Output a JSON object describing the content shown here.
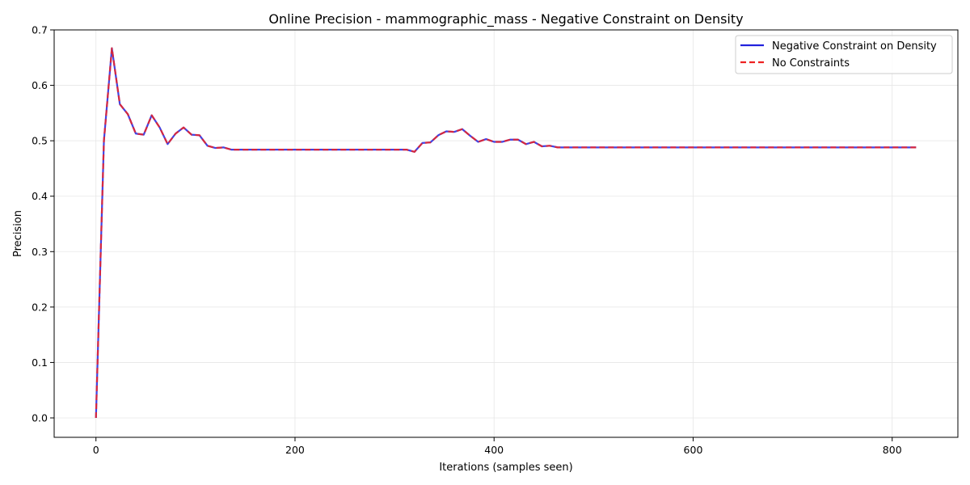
{
  "chart_data": {
    "type": "line",
    "title": "Online Precision - mammographic_mass - Negative Constraint on Density",
    "xlabel": "Iterations (samples seen)",
    "ylabel": "Precision",
    "xlim": [
      -42,
      866
    ],
    "ylim": [
      -0.035,
      0.7
    ],
    "xticks": [
      0,
      200,
      400,
      600,
      800
    ],
    "yticks": [
      0.0,
      0.1,
      0.2,
      0.3,
      0.4,
      0.5,
      0.6,
      0.7
    ],
    "xtick_labels": [
      "0",
      "200",
      "400",
      "600",
      "800"
    ],
    "ytick_labels": [
      "0.0",
      "0.1",
      "0.2",
      "0.3",
      "0.4",
      "0.5",
      "0.6",
      "0.7"
    ],
    "grid": true,
    "legend_position": "top-right",
    "x": [
      0,
      8,
      16,
      24,
      32,
      40,
      48,
      56,
      64,
      72,
      80,
      88,
      96,
      104,
      112,
      120,
      128,
      136,
      144,
      152,
      160,
      168,
      176,
      184,
      192,
      200,
      208,
      216,
      224,
      232,
      240,
      248,
      256,
      264,
      272,
      280,
      288,
      296,
      304,
      312,
      320,
      328,
      336,
      344,
      352,
      360,
      368,
      376,
      384,
      392,
      400,
      408,
      416,
      424,
      432,
      440,
      448,
      456,
      464,
      472,
      480,
      500,
      520,
      540,
      560,
      580,
      600,
      620,
      640,
      660,
      680,
      700,
      720,
      740,
      760,
      780,
      800,
      824
    ],
    "series": [
      {
        "name": "Negative Constraint on Density",
        "color": "#2222dd",
        "style": "solid",
        "values": [
          0.0,
          0.5,
          0.667,
          0.566,
          0.548,
          0.513,
          0.511,
          0.546,
          0.524,
          0.494,
          0.513,
          0.524,
          0.511,
          0.51,
          0.491,
          0.487,
          0.488,
          0.484,
          0.484,
          0.484,
          0.484,
          0.484,
          0.484,
          0.484,
          0.484,
          0.484,
          0.484,
          0.484,
          0.484,
          0.484,
          0.484,
          0.484,
          0.484,
          0.484,
          0.484,
          0.484,
          0.484,
          0.484,
          0.484,
          0.484,
          0.48,
          0.496,
          0.497,
          0.51,
          0.517,
          0.516,
          0.521,
          0.509,
          0.498,
          0.503,
          0.498,
          0.498,
          0.502,
          0.502,
          0.494,
          0.498,
          0.49,
          0.491,
          0.488,
          0.488,
          0.488,
          0.488,
          0.488,
          0.488,
          0.488,
          0.488,
          0.488,
          0.488,
          0.488,
          0.488,
          0.488,
          0.488,
          0.488,
          0.488,
          0.488,
          0.488,
          0.488,
          0.488
        ]
      },
      {
        "name": "No Constraints",
        "color": "#ee2222",
        "style": "dashed",
        "values": [
          0.0,
          0.5,
          0.667,
          0.566,
          0.548,
          0.513,
          0.511,
          0.546,
          0.524,
          0.494,
          0.513,
          0.524,
          0.511,
          0.51,
          0.491,
          0.487,
          0.488,
          0.484,
          0.484,
          0.484,
          0.484,
          0.484,
          0.484,
          0.484,
          0.484,
          0.484,
          0.484,
          0.484,
          0.484,
          0.484,
          0.484,
          0.484,
          0.484,
          0.484,
          0.484,
          0.484,
          0.484,
          0.484,
          0.484,
          0.484,
          0.48,
          0.496,
          0.497,
          0.51,
          0.517,
          0.516,
          0.521,
          0.509,
          0.498,
          0.503,
          0.498,
          0.498,
          0.502,
          0.502,
          0.494,
          0.498,
          0.49,
          0.491,
          0.488,
          0.488,
          0.488,
          0.488,
          0.488,
          0.488,
          0.488,
          0.488,
          0.488,
          0.488,
          0.488,
          0.488,
          0.488,
          0.488,
          0.488,
          0.488,
          0.488,
          0.488,
          0.488,
          0.488
        ]
      }
    ]
  }
}
